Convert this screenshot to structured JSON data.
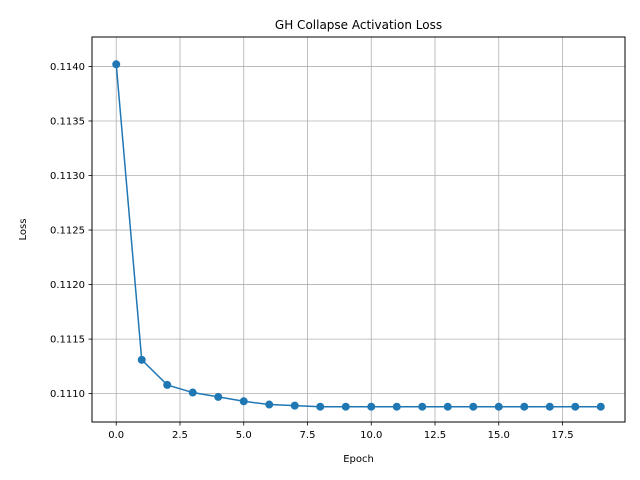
{
  "chart_data": {
    "type": "line",
    "title": "GH Collapse Activation Loss",
    "xlabel": "Epoch",
    "ylabel": "Loss",
    "grid": true,
    "xlim": [
      -0.95,
      19.95
    ],
    "ylim": [
      0.11074,
      0.11427
    ],
    "x_ticks": [
      0,
      2.5,
      5,
      7.5,
      10,
      12.5,
      15,
      17.5
    ],
    "x_tick_labels": [
      "0.0",
      "2.5",
      "5.0",
      "7.5",
      "10.0",
      "12.5",
      "15.0",
      "17.5"
    ],
    "y_ticks": [
      0.111,
      0.1115,
      0.112,
      0.1125,
      0.113,
      0.1135,
      0.114
    ],
    "y_tick_labels": [
      "0.1110",
      "0.1115",
      "0.1120",
      "0.1125",
      "0.1130",
      "0.1135",
      "0.1140"
    ],
    "series": [
      {
        "color": "#1f77b4",
        "marker": "circle",
        "x": [
          0,
          1,
          2,
          3,
          4,
          5,
          6,
          7,
          8,
          9,
          10,
          11,
          12,
          13,
          14,
          15,
          16,
          17,
          18,
          19
        ],
        "values": [
          0.11402,
          0.11131,
          0.11108,
          0.11101,
          0.11097,
          0.11093,
          0.1109,
          0.11089,
          0.11088,
          0.11088,
          0.11088,
          0.11088,
          0.11088,
          0.11088,
          0.11088,
          0.11088,
          0.11088,
          0.11088,
          0.11088,
          0.11088
        ]
      }
    ]
  }
}
